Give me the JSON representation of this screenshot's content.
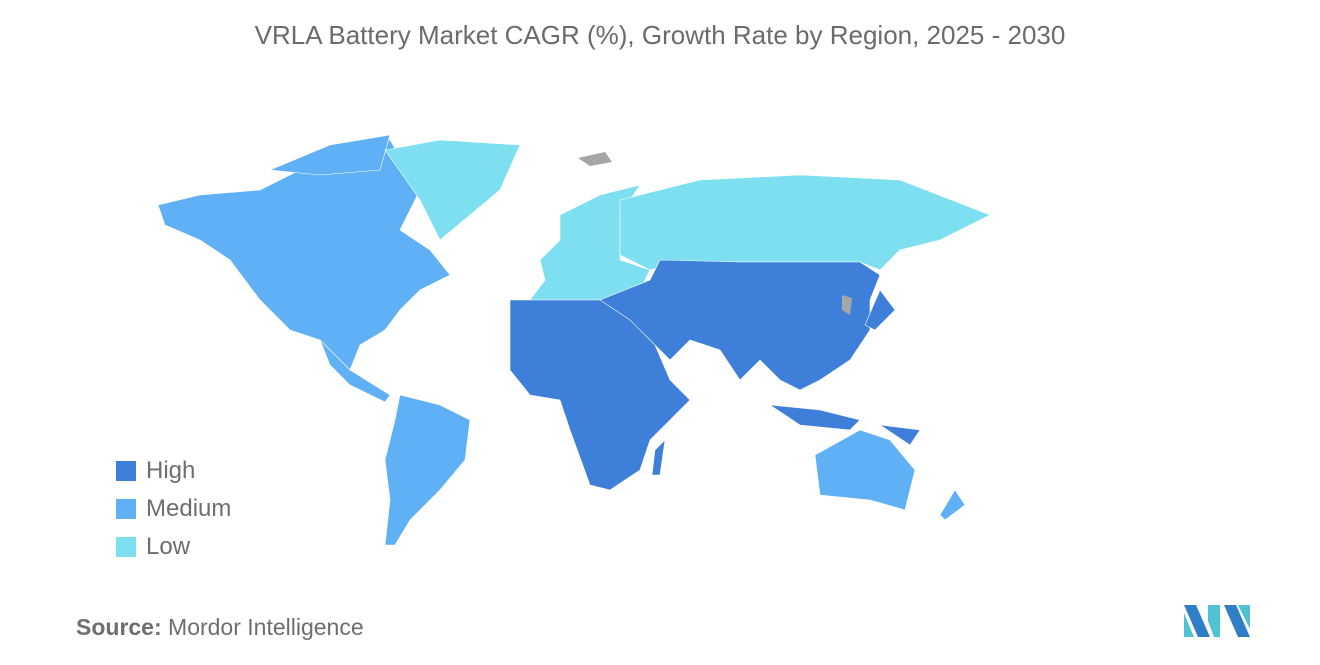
{
  "title": "VRLA Battery Market CAGR (%), Growth Rate by Region, 2025 - 2030",
  "legend": [
    {
      "label": "High",
      "color": "#3d7fd9"
    },
    {
      "label": "Medium",
      "color": "#5fb0f5"
    },
    {
      "label": "Low",
      "color": "#7ddff0"
    }
  ],
  "regions": {
    "north-america": "Medium",
    "south-america": "Medium",
    "europe": "Low",
    "russia-greenland": "Low",
    "middle-east-africa": "High",
    "asia": "High",
    "australia-nz": "Medium"
  },
  "colors": {
    "nodata": "#a6a6a6"
  },
  "source": {
    "label": "Source:",
    "value": "Mordor Intelligence"
  },
  "logo_text": "Mordor Intelligence"
}
